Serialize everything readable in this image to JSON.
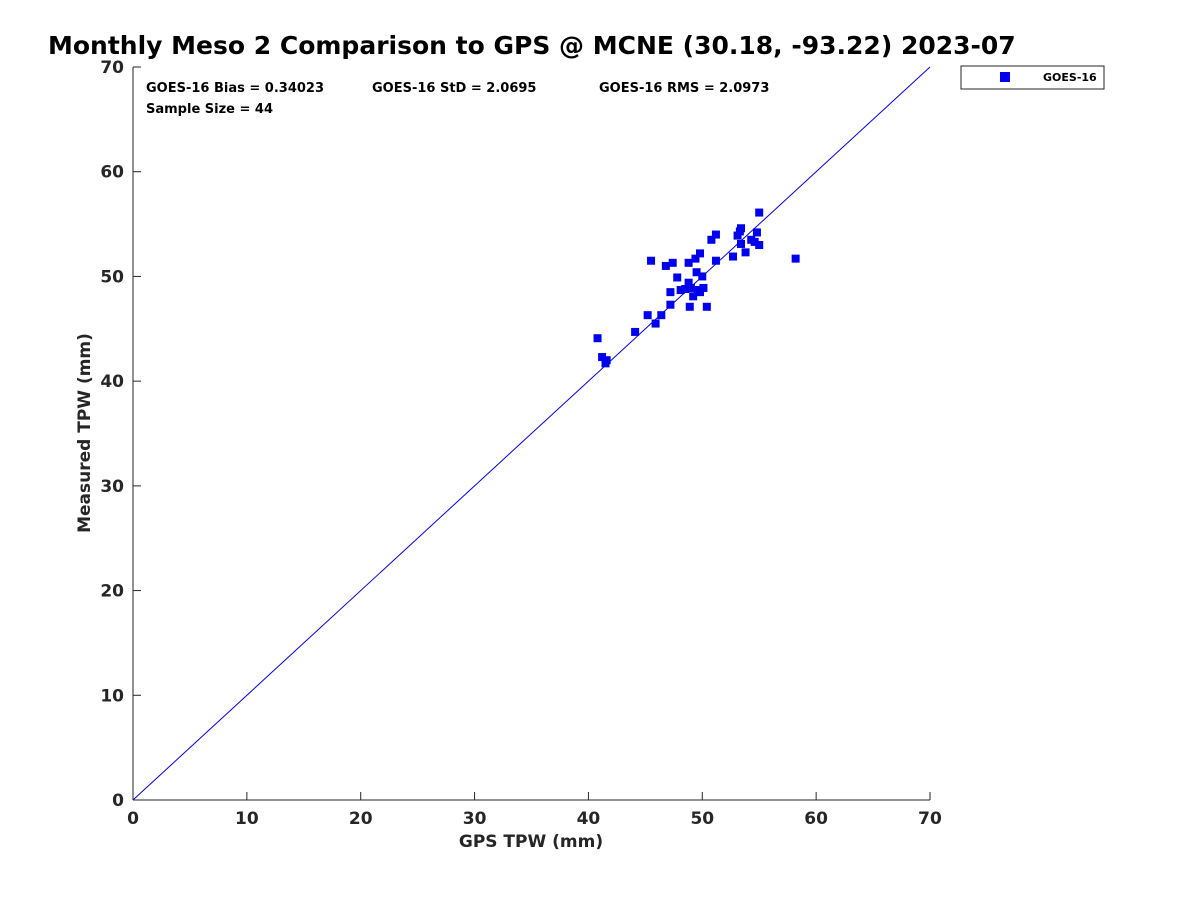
{
  "chart_data": {
    "type": "scatter",
    "title": "Monthly Meso 2 Comparison to GPS @ MCNE (30.18, -93.22) 2023-07",
    "xlabel": "GPS TPW (mm)",
    "ylabel": "Measured TPW (mm)",
    "xlim": [
      0,
      70
    ],
    "ylim": [
      0,
      70
    ],
    "xticks": [
      "0",
      "10",
      "20",
      "30",
      "40",
      "50",
      "60",
      "70"
    ],
    "yticks": [
      "0",
      "10",
      "20",
      "30",
      "40",
      "50",
      "60",
      "70"
    ],
    "grid": false,
    "legend_position": "top-right, outside plot",
    "colors": {
      "series": "#0000ee",
      "axes": "#262626"
    },
    "reference_line": {
      "x": [
        0,
        70
      ],
      "y": [
        0,
        70
      ],
      "color": "#0000ee"
    },
    "annotations": [
      "GOES-16 Bias = 0.34023",
      "GOES-16 StD = 2.0695",
      "GOES-16 RMS = 2.0973",
      "Sample Size = 44"
    ],
    "series": [
      {
        "name": "GOES-16",
        "marker": "square",
        "points": [
          [
            40.8,
            44.1
          ],
          [
            41.2,
            42.3
          ],
          [
            41.5,
            41.7
          ],
          [
            41.6,
            42.0
          ],
          [
            44.1,
            44.7
          ],
          [
            45.2,
            46.3
          ],
          [
            45.5,
            51.5
          ],
          [
            45.9,
            45.5
          ],
          [
            46.4,
            46.3
          ],
          [
            46.8,
            51.0
          ],
          [
            47.2,
            48.5
          ],
          [
            47.2,
            47.3
          ],
          [
            47.4,
            51.3
          ],
          [
            47.8,
            49.9
          ],
          [
            48.1,
            48.7
          ],
          [
            48.5,
            48.8
          ],
          [
            48.8,
            51.3
          ],
          [
            48.8,
            49.4
          ],
          [
            48.9,
            47.1
          ],
          [
            49.0,
            48.9
          ],
          [
            49.2,
            48.1
          ],
          [
            49.4,
            51.7
          ],
          [
            49.5,
            50.4
          ],
          [
            49.6,
            48.7
          ],
          [
            49.8,
            52.2
          ],
          [
            49.8,
            48.5
          ],
          [
            50.0,
            50.0
          ],
          [
            50.1,
            48.9
          ],
          [
            50.4,
            47.1
          ],
          [
            50.8,
            53.5
          ],
          [
            51.2,
            51.5
          ],
          [
            51.2,
            54.0
          ],
          [
            52.7,
            51.9
          ],
          [
            53.1,
            53.9
          ],
          [
            53.3,
            54.3
          ],
          [
            53.4,
            54.6
          ],
          [
            53.4,
            53.1
          ],
          [
            53.8,
            52.3
          ],
          [
            54.3,
            53.5
          ],
          [
            54.6,
            53.3
          ],
          [
            54.8,
            54.2
          ],
          [
            55.0,
            56.1
          ],
          [
            55.0,
            53.0
          ],
          [
            58.2,
            51.7
          ]
        ]
      }
    ]
  }
}
